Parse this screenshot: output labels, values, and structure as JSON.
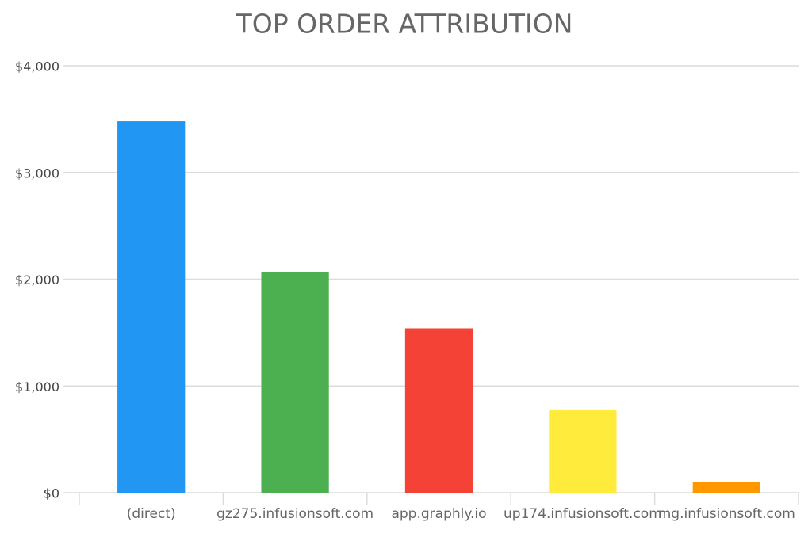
{
  "chart_data": {
    "type": "bar",
    "title": "TOP ORDER ATTRIBUTION",
    "categories": [
      "(direct)",
      "gz275.infusionsoft.com",
      "app.graphly.io",
      "up174.infusionsoft.com",
      "mg.infusionsoft.com"
    ],
    "values": [
      3480,
      2070,
      1540,
      780,
      100
    ],
    "colors": [
      "#2196f3",
      "#4caf50",
      "#f44336",
      "#ffeb3b",
      "#ff9800"
    ],
    "ylim": [
      0,
      4000
    ],
    "yticks": [
      {
        "value": 0,
        "label": "$0"
      },
      {
        "value": 1000,
        "label": "$1,000"
      },
      {
        "value": 2000,
        "label": "$2,000"
      },
      {
        "value": 3000,
        "label": "$3,000"
      },
      {
        "value": 4000,
        "label": "$4,000"
      }
    ],
    "grid": true
  }
}
